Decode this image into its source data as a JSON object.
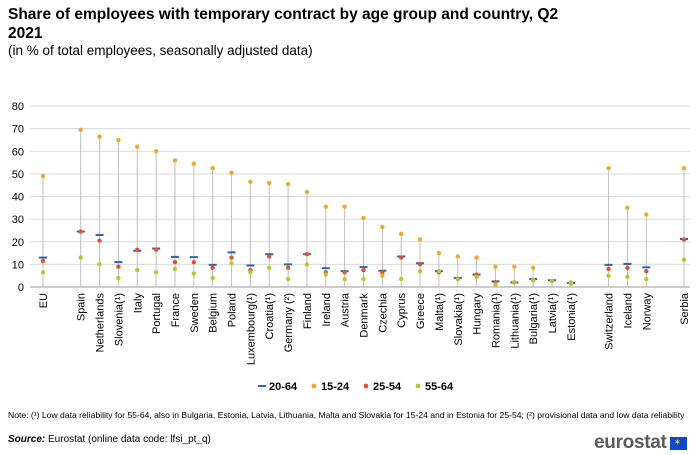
{
  "title": "Share of employees with temporary contract by age group and country, Q2 2021",
  "subtitle": "(in % of total employees, seasonally adjusted data)",
  "note": "Note: (¹) Low data reliability for 55-64, also in Bulgaria, Estonia, Latvia, Lithuania, Malta and Slovakia for 15-24 and in Estonia for 25-54; (²) provisional data and low data reliability",
  "source_label": "Source:",
  "source_text": " Eurostat (online data code: lfsi_pt_q)",
  "logo_text": "eurostat",
  "chart_data": {
    "type": "scatter",
    "ylim": [
      0,
      80
    ],
    "yticks": [
      0,
      10,
      20,
      30,
      40,
      50,
      60,
      70,
      80
    ],
    "grid": true,
    "legend_position": "bottom",
    "categories": [
      "EU",
      "",
      "Spain",
      "Netherlands",
      "Slovenia(¹)",
      "Italy",
      "Portugal",
      "France",
      "Sweden",
      "Belgium",
      "Poland",
      "Luxembourg(¹)",
      "Croatia(¹)",
      "Germany (²)",
      "Finland",
      "Ireland",
      "Austria",
      "Denmark",
      "Czechia",
      "Cyprus",
      "Greece",
      "Malta(¹)",
      "Slovakia(¹)",
      "Hungary",
      "Romania(¹)",
      "Lithuania(¹)",
      "Bulgaria(¹)",
      "Latvia(¹)",
      "Estonia(¹)",
      "",
      "Switzerland",
      "Iceland",
      "Norway",
      "",
      "Serbia"
    ],
    "series": [
      {
        "name": "20-64",
        "color": "#2f63b0",
        "marker": "dash",
        "values": [
          13,
          null,
          24.5,
          23,
          11,
          16,
          17,
          13.3,
          13.2,
          9.8,
          15.3,
          9.5,
          14.5,
          10,
          14.5,
          8.3,
          7,
          8.8,
          7.2,
          13.5,
          10.5,
          7,
          4,
          5.5,
          2.5,
          2,
          3.5,
          3,
          1.8,
          null,
          9.8,
          10.2,
          8.7,
          null,
          21.2
        ]
      },
      {
        "name": "15-24",
        "color": "#f2a72a",
        "marker": "dot",
        "values": [
          49,
          null,
          69.5,
          66.5,
          65,
          62,
          60,
          56,
          54.5,
          52.5,
          50.5,
          46.5,
          46,
          45.5,
          42,
          35.5,
          35.5,
          30.5,
          26.5,
          23.5,
          21,
          15,
          13.5,
          13,
          9,
          9,
          8.5,
          2.5,
          2,
          null,
          52.5,
          35,
          32,
          null,
          52.5
        ]
      },
      {
        "name": "25-54",
        "color": "#e2522f",
        "marker": "dot",
        "values": [
          11.5,
          null,
          24.5,
          20.5,
          9,
          16.5,
          16.5,
          11,
          11,
          8.5,
          13,
          7.5,
          13.5,
          8.5,
          14.5,
          6.5,
          6.5,
          7.5,
          6.5,
          13,
          10,
          6.5,
          3.5,
          5.5,
          2,
          2,
          3,
          2.5,
          1.5,
          null,
          8,
          8.5,
          7,
          null,
          21
        ]
      },
      {
        "name": "55-64",
        "color": "#b9c72d",
        "marker": "dot",
        "values": [
          6.5,
          null,
          13,
          10,
          4,
          7.5,
          6.5,
          8,
          6,
          4,
          10.5,
          6.5,
          8.5,
          3.5,
          10,
          5.5,
          3.5,
          3.5,
          5,
          3.5,
          7,
          7,
          3.5,
          4.5,
          1,
          2,
          3,
          2.5,
          1.5,
          null,
          5,
          4.5,
          3.5,
          null,
          12
        ]
      }
    ]
  }
}
